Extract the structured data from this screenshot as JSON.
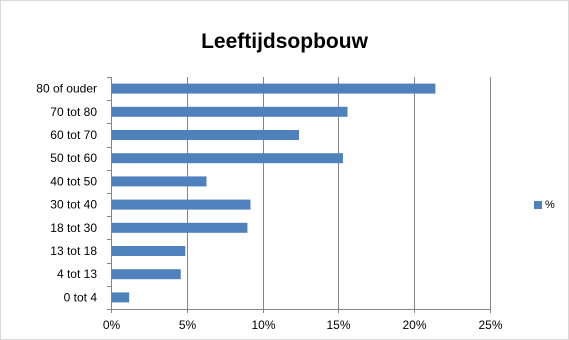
{
  "chart_data": {
    "type": "bar",
    "orientation": "horizontal",
    "title": "Leeftijdsopbouw",
    "categories": [
      "0 tot 4",
      "4 tot 13",
      "13 tot 18",
      "18 tot 30",
      "30 tot 40",
      "40 tot 50",
      "50 tot 60",
      "60 tot 70",
      "70 tot 80",
      "80 of ouder"
    ],
    "series": [
      {
        "name": "%",
        "values": [
          1.2,
          4.6,
          4.9,
          9.0,
          9.2,
          6.3,
          15.3,
          12.4,
          15.6,
          21.4
        ],
        "color": "#4f81bd"
      }
    ],
    "x_ticks": [
      "0%",
      "5%",
      "10%",
      "15%",
      "20%",
      "25%"
    ],
    "xlim": [
      0,
      25
    ],
    "grid": "vertical",
    "legend_position": "right",
    "xlabel": "",
    "ylabel": ""
  }
}
